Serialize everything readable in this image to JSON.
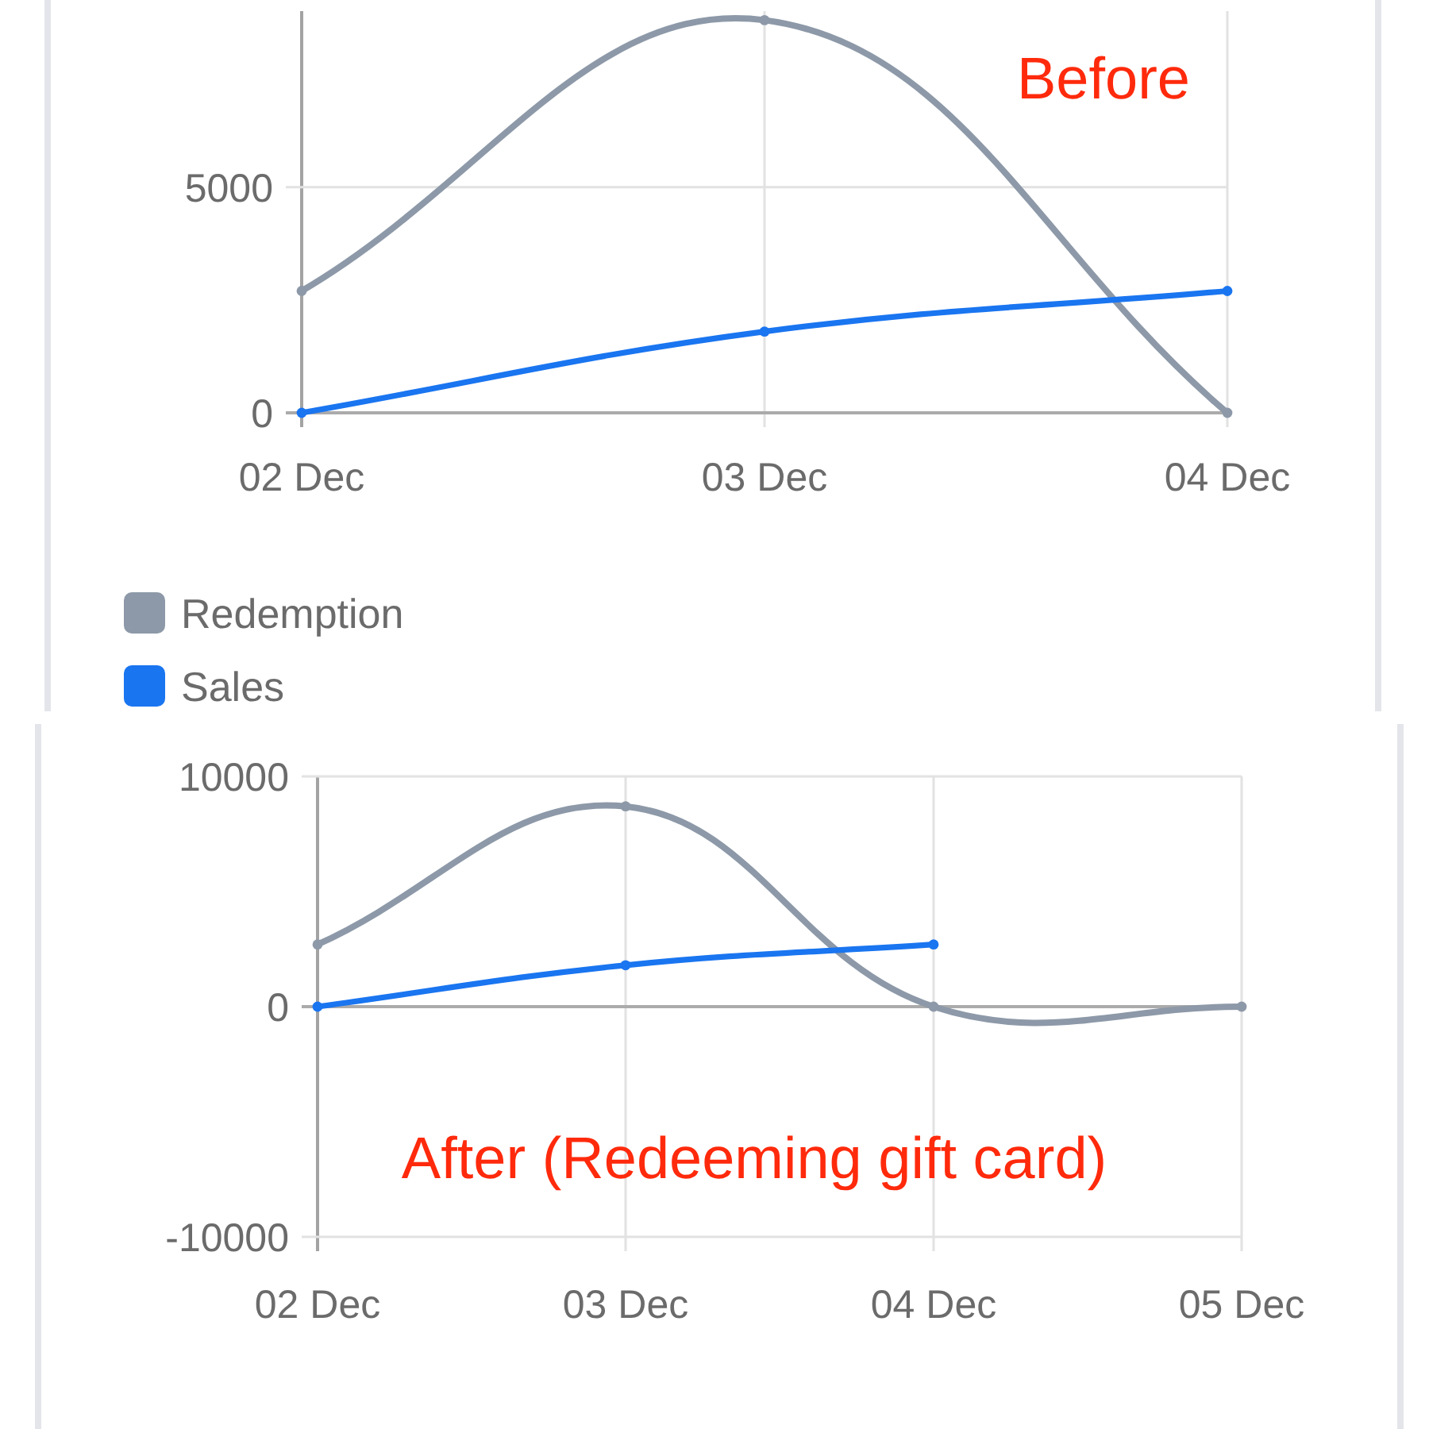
{
  "chart_data": [
    {
      "type": "line",
      "title": "Before",
      "categories": [
        "02 Dec",
        "03 Dec",
        "04 Dec"
      ],
      "series": [
        {
          "name": "Redemption",
          "color": "#8d99a8",
          "values": [
            2700,
            8700,
            0
          ]
        },
        {
          "name": "Sales",
          "color": "#1a75f0",
          "values": [
            0,
            1800,
            2700
          ]
        }
      ],
      "ylim": [
        0,
        8900
      ],
      "yticks": [
        0,
        5000
      ],
      "grid": true,
      "legend": "bottom left",
      "marker": "circle"
    },
    {
      "type": "line",
      "title": "After (Redeeming gift card)",
      "categories": [
        "02 Dec",
        "03 Dec",
        "04 Dec",
        "05 Dec"
      ],
      "series": [
        {
          "color": "#8d99a8",
          "values": [
            2700,
            8700,
            0,
            0
          ]
        },
        {
          "color": "#1a75f0",
          "values": [
            0,
            1800,
            2700,
            null
          ]
        }
      ],
      "ylim": [
        -10000,
        10000
      ],
      "yticks": [
        -10000,
        0,
        10000
      ],
      "grid": true,
      "marker": "circle"
    }
  ]
}
